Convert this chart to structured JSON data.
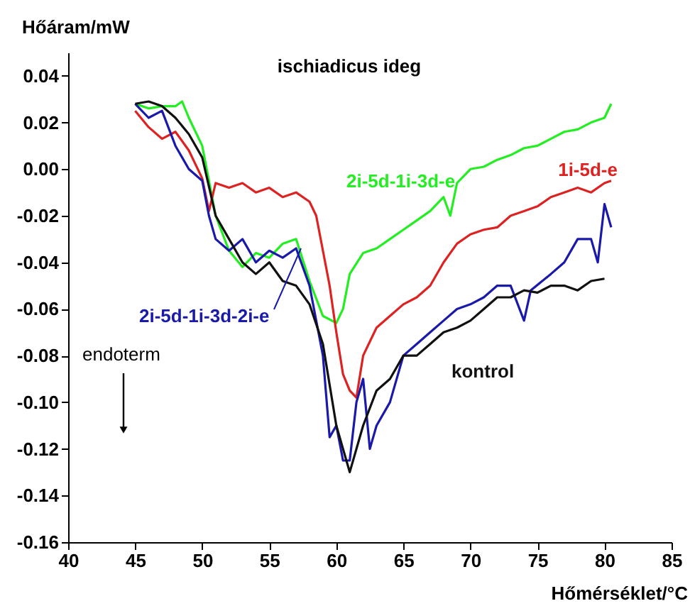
{
  "chart_data": {
    "type": "line",
    "title": "ischiadicus ideg",
    "xlabel": "Hőmérséklet/°C",
    "ylabel": "Hőáram/mW",
    "xlim": [
      40,
      85
    ],
    "xticks": [
      40,
      45,
      50,
      55,
      60,
      65,
      70,
      75,
      80,
      85
    ],
    "ylim": [
      -0.16,
      0.05
    ],
    "yticks": [
      0.04,
      0.02,
      {
        "value": 0,
        "label": "0.00"
      },
      -0.02,
      -0.04,
      -0.06,
      -0.08,
      {
        "value": -0.1,
        "label": "-0.10"
      },
      -0.12,
      -0.14,
      -0.16
    ],
    "grid": false,
    "marker": "none",
    "line_style": "solid",
    "annotations": [
      "endoterm"
    ],
    "series": [
      {
        "name": "2i-5d-1i-3d-e",
        "color": "#22ee22",
        "x": [
          45,
          46,
          47,
          48,
          48.5,
          49,
          50,
          51,
          52,
          53,
          54,
          55,
          56,
          57,
          58,
          59,
          60,
          60.5,
          61,
          62,
          63,
          64,
          65,
          66,
          67,
          68,
          68.5,
          69,
          70,
          71,
          72,
          73,
          74,
          75,
          76,
          77,
          78,
          79,
          80,
          80.5
        ],
        "values": [
          0.028,
          0.026,
          0.027,
          0.027,
          0.029,
          0.022,
          0.01,
          -0.02,
          -0.035,
          -0.042,
          -0.036,
          -0.038,
          -0.032,
          -0.03,
          -0.048,
          -0.063,
          -0.066,
          -0.06,
          -0.045,
          -0.036,
          -0.034,
          -0.03,
          -0.026,
          -0.022,
          -0.018,
          -0.012,
          -0.02,
          -0.006,
          0.0,
          0.001,
          0.004,
          0.006,
          0.009,
          0.01,
          0.013,
          0.016,
          0.017,
          0.02,
          0.022,
          0.028
        ]
      },
      {
        "name": "1i-5d-e",
        "color": "#dd2222",
        "x": [
          45,
          46,
          47,
          48,
          49,
          50,
          50.5,
          51,
          52,
          53,
          54,
          55,
          56,
          57,
          58,
          58.5,
          59,
          59.5,
          60,
          60.5,
          61,
          61.5,
          62,
          63,
          64,
          65,
          66,
          67,
          68,
          69,
          70,
          71,
          72,
          73,
          74,
          75,
          76,
          77,
          78,
          79,
          80,
          80.5
        ],
        "values": [
          0.025,
          0.018,
          0.013,
          0.016,
          0.008,
          -0.004,
          -0.018,
          -0.006,
          -0.008,
          -0.006,
          -0.01,
          -0.008,
          -0.012,
          -0.01,
          -0.014,
          -0.02,
          -0.035,
          -0.05,
          -0.07,
          -0.088,
          -0.095,
          -0.098,
          -0.08,
          -0.068,
          -0.063,
          -0.058,
          -0.055,
          -0.05,
          -0.04,
          -0.032,
          -0.028,
          -0.026,
          -0.025,
          -0.02,
          -0.018,
          -0.016,
          -0.012,
          -0.01,
          -0.008,
          -0.01,
          -0.006,
          -0.005
        ]
      },
      {
        "name": "2i-5d-1i-3d-2i-e",
        "color": "#1a1aaa",
        "x": [
          45,
          46,
          47,
          48,
          48.5,
          49,
          50,
          50.5,
          51,
          52,
          53,
          54,
          55,
          56,
          57,
          58,
          59,
          59.5,
          60,
          60.5,
          61,
          61.5,
          62,
          62.5,
          63,
          64,
          65,
          66,
          67,
          68,
          69,
          70,
          71,
          72,
          73,
          74,
          74.5,
          76,
          77,
          78,
          79,
          79.5,
          80,
          80.5
        ],
        "values": [
          0.028,
          0.022,
          0.025,
          0.01,
          0.005,
          0.0,
          -0.005,
          -0.02,
          -0.03,
          -0.035,
          -0.03,
          -0.04,
          -0.035,
          -0.038,
          -0.034,
          -0.05,
          -0.08,
          -0.115,
          -0.11,
          -0.125,
          -0.125,
          -0.1,
          -0.09,
          -0.12,
          -0.11,
          -0.1,
          -0.08,
          -0.075,
          -0.07,
          -0.065,
          -0.06,
          -0.058,
          -0.055,
          -0.05,
          -0.05,
          -0.065,
          -0.052,
          -0.045,
          -0.04,
          -0.03,
          -0.03,
          -0.04,
          -0.015,
          -0.025
        ]
      },
      {
        "name": "kontrol",
        "color": "#111111",
        "x": [
          45,
          46,
          47,
          48,
          49,
          50,
          51,
          52,
          53,
          54,
          55,
          56,
          57,
          58,
          59,
          60,
          61,
          62,
          63,
          64,
          65,
          66,
          67,
          68,
          69,
          70,
          71,
          72,
          73,
          74,
          75,
          76,
          77,
          78,
          79,
          80
        ],
        "values": [
          0.028,
          0.029,
          0.027,
          0.022,
          0.015,
          0.005,
          -0.02,
          -0.03,
          -0.04,
          -0.045,
          -0.04,
          -0.048,
          -0.05,
          -0.058,
          -0.075,
          -0.11,
          -0.13,
          -0.11,
          -0.095,
          -0.09,
          -0.08,
          -0.08,
          -0.075,
          -0.07,
          -0.068,
          -0.065,
          -0.06,
          -0.055,
          -0.055,
          -0.052,
          -0.053,
          -0.05,
          -0.05,
          -0.052,
          -0.048,
          -0.047
        ]
      }
    ]
  }
}
